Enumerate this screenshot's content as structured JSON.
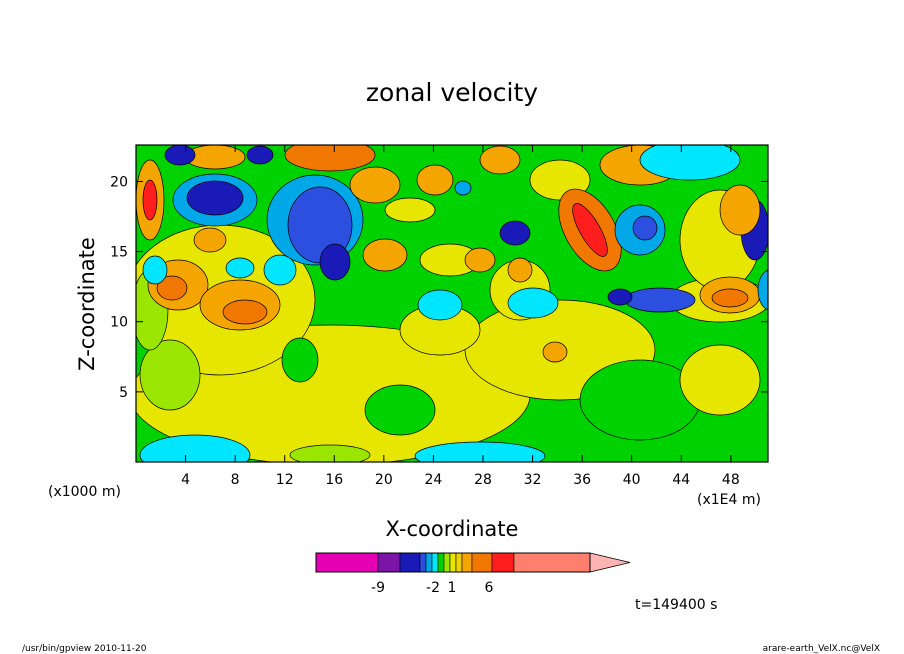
{
  "chart_data": {
    "type": "heatmap",
    "title": "zonal velocity",
    "xlabel": "X-coordinate",
    "ylabel": "Z-coordinate",
    "x_units_label": "(x1000 m)",
    "x_scale_label": "(x1E4 m)",
    "xlim": [
      0,
      51
    ],
    "ylim": [
      0,
      22.6
    ],
    "x_ticks": [
      "4",
      "8",
      "12",
      "16",
      "20",
      "24",
      "28",
      "32",
      "36",
      "40",
      "44",
      "48"
    ],
    "y_ticks": [
      "5",
      "10",
      "15",
      "20"
    ],
    "colorbar_ticks": [
      "-9",
      "-2",
      "1",
      "6"
    ],
    "colorbar_colors": [
      "#e600b4",
      "#7d14a8",
      "#1a1ab8",
      "#2d4fe0",
      "#00a8e8",
      "#00e6ff",
      "#00d200",
      "#9be600",
      "#e6e600",
      "#f0d200",
      "#f5a500",
      "#f07800",
      "#ff1e1e",
      "#ff7f6e",
      "#ffb4b4"
    ],
    "grid": false,
    "time_label": "t=149400 s",
    "footer_left": "/usr/bin/gpview   2010-11-20",
    "footer_right": "arare-earth_VelX.nc@VelX"
  }
}
